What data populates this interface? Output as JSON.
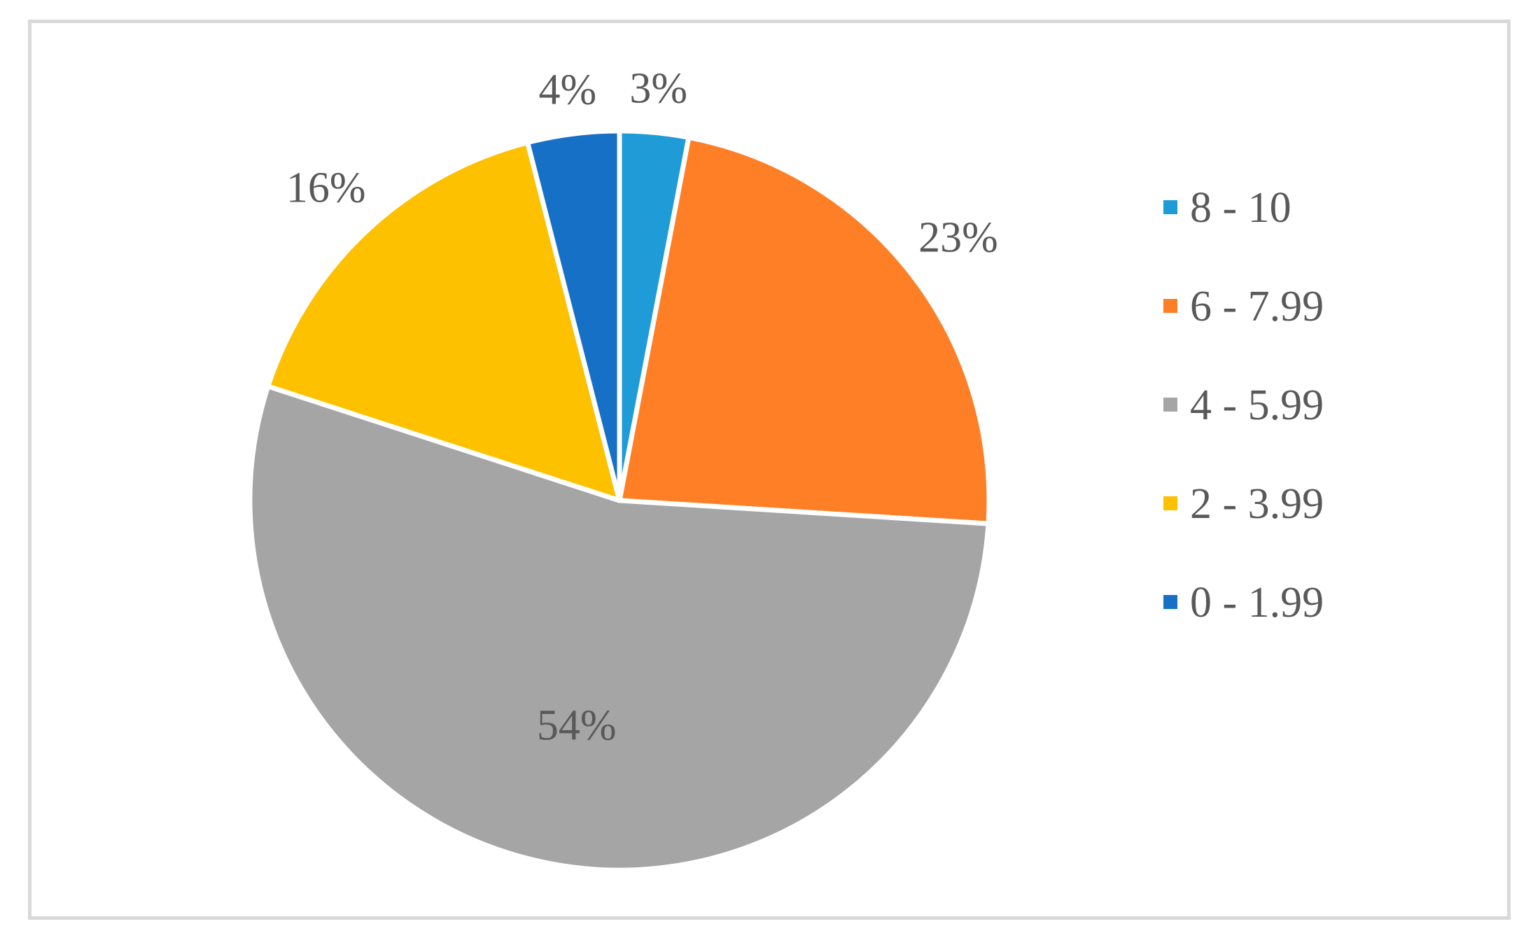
{
  "chart_data": {
    "type": "pie",
    "title": "",
    "categories": [
      "8 - 10",
      "6 - 7.99",
      "4 - 5.99",
      "2 - 3.99",
      "0 - 1.99"
    ],
    "values": [
      3,
      23,
      54,
      16,
      4
    ],
    "labels": [
      "3%",
      "23%",
      "54%",
      "16%",
      "4%"
    ],
    "colors": [
      "#1f9bd7",
      "#fe7f25",
      "#a5a5a5",
      "#fdc100",
      "#1670c5"
    ],
    "legend_position": "right",
    "label_color": "#595959"
  }
}
